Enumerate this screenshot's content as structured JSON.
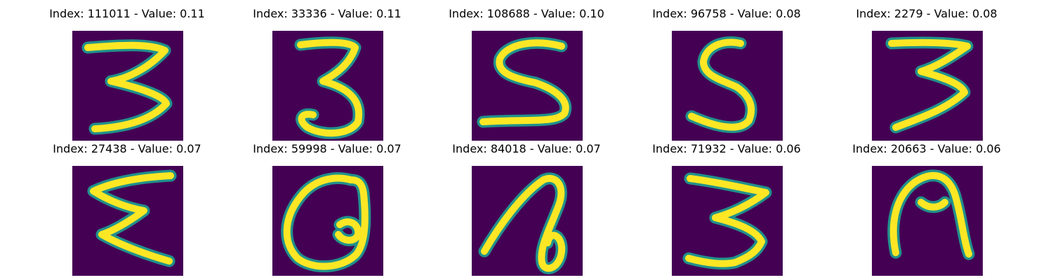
{
  "chart_data": {
    "type": "image_grid",
    "grid": {
      "rows": 2,
      "cols": 5
    },
    "colormap": "viridis",
    "colors": {
      "low": "#440154",
      "mid": "#21918c",
      "high": "#fde725"
    },
    "axes_visible": false,
    "panels": [
      {
        "index": 111011,
        "value": 0.11,
        "title": "Index: 111011 - Value: 0.11",
        "digit_shape": "3-zigzag"
      },
      {
        "index": 33336,
        "value": 0.11,
        "title": "Index: 33336 - Value: 0.11",
        "digit_shape": "3-round"
      },
      {
        "index": 108688,
        "value": 0.1,
        "title": "Index: 108688 - Value: 0.10",
        "digit_shape": "5-wide"
      },
      {
        "index": 96758,
        "value": 0.08,
        "title": "Index: 96758 - Value: 0.08",
        "digit_shape": "5-narrow"
      },
      {
        "index": 2279,
        "value": 0.08,
        "title": "Index: 2279 - Value: 0.08",
        "digit_shape": "3-zigzag-bold"
      },
      {
        "index": 27438,
        "value": 0.07,
        "title": "Index: 27438 - Value: 0.07",
        "digit_shape": "sigma"
      },
      {
        "index": 59998,
        "value": 0.07,
        "title": "Index: 59998 - Value: 0.07",
        "digit_shape": "loop-a"
      },
      {
        "index": 84018,
        "value": 0.07,
        "title": "Index: 84018 - Value: 0.07",
        "digit_shape": "hook-loop"
      },
      {
        "index": 71932,
        "value": 0.06,
        "title": "Index: 71932 - Value: 0.06",
        "digit_shape": "3-sharp"
      },
      {
        "index": 20663,
        "value": 0.06,
        "title": "Index: 20663 - Value: 0.06",
        "digit_shape": "arch-bold"
      }
    ]
  }
}
